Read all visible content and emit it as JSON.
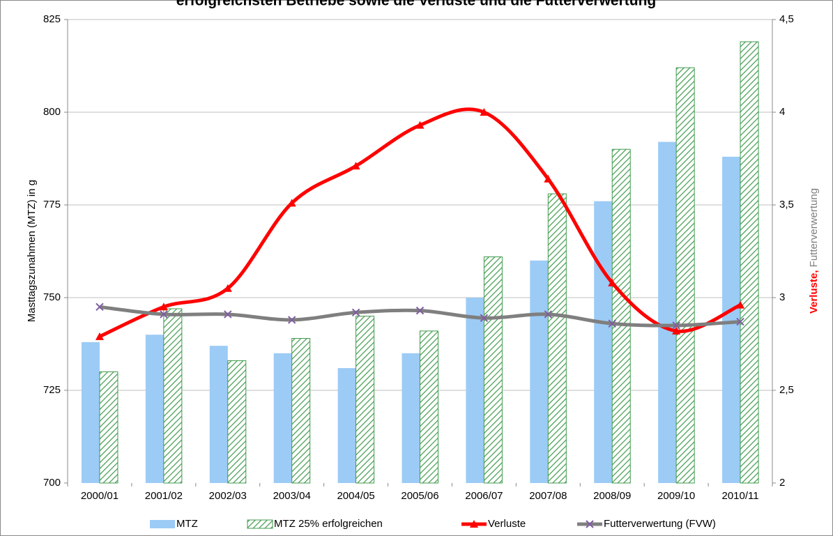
{
  "chart_data": {
    "type": "bar",
    "title": "erfolgreichsten Betriebe sowie die Verluste und die Futterverwertung",
    "y_label": "Masttagszunahmen (MTZ) in g",
    "y2_label": [
      "Verluste,",
      "Futterverwertung"
    ],
    "categories": [
      "2000/01",
      "2001/02",
      "2002/03",
      "2003/04",
      "2004/05",
      "2005/06",
      "2006/07",
      "2007/08",
      "2008/09",
      "2009/10",
      "2010/11"
    ],
    "series": [
      {
        "name": "MTZ",
        "type": "bar",
        "color": "#9ccbf6",
        "values": [
          738,
          740,
          737,
          735,
          731,
          735,
          750,
          760,
          776,
          792,
          788
        ]
      },
      {
        "name": "MTZ 25% erfolgreichen",
        "type": "bar",
        "color": "#3f9a4c",
        "hatch": true,
        "values": [
          730,
          747,
          733,
          739,
          745,
          741,
          761,
          778,
          790,
          812,
          819
        ]
      },
      {
        "name": "Verluste",
        "type": "line",
        "axis": "y2",
        "color": "#ff0000",
        "marker": "triangle",
        "values": [
          2.79,
          2.95,
          3.05,
          3.51,
          3.71,
          3.93,
          4.0,
          3.64,
          3.08,
          2.82,
          2.96
        ]
      },
      {
        "name": "Futterverwertung (FVW)",
        "type": "line",
        "axis": "y2",
        "color": "#7f7f7f",
        "marker_color": "#7f5fa0",
        "marker": "x",
        "values": [
          2.95,
          2.91,
          2.91,
          2.88,
          2.92,
          2.93,
          2.89,
          2.91,
          2.86,
          2.85,
          2.87
        ]
      }
    ],
    "ylim": [
      700,
      825
    ],
    "yticks": [
      700,
      725,
      750,
      775,
      800,
      825
    ],
    "y2lim": [
      2,
      4.5
    ],
    "y2ticks": [
      2,
      {
        "value": 2.5,
        "label": "2,5"
      },
      3,
      {
        "value": 3.5,
        "label": "3,5"
      },
      4,
      {
        "value": 4.5,
        "label": "4,5"
      }
    ],
    "grid": true
  }
}
